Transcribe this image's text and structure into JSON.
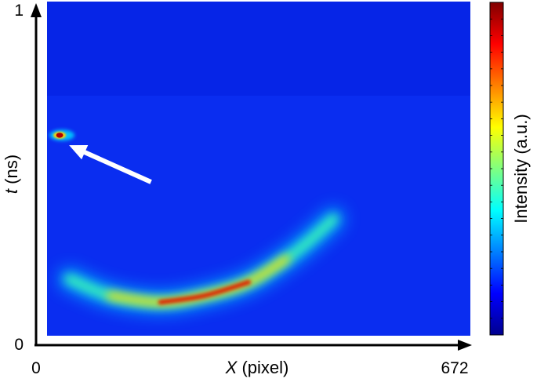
{
  "chart_data": {
    "type": "heatmap",
    "title": "",
    "xlabel": {
      "symbol": "X",
      "unit": " (pixel)"
    },
    "ylabel": {
      "symbol": "t",
      "unit": " (ns)"
    },
    "xlim": [
      0,
      672
    ],
    "ylim": [
      0,
      1
    ],
    "x_ticks": [
      "0",
      "672"
    ],
    "y_ticks": [
      "0",
      "1"
    ],
    "colorbar": {
      "label": "Intensity (a.u.)",
      "colormap": "jet",
      "colors": [
        "#00008f",
        "#0000ff",
        "#0080ff",
        "#00ffff",
        "#80ff80",
        "#ffff00",
        "#ff8000",
        "#ff0000",
        "#800000"
      ]
    },
    "background_color": "#0a2df0",
    "features": {
      "streak_curve": {
        "points": [
          [
            35,
            0.17
          ],
          [
            100,
            0.12
          ],
          [
            180,
            0.1
          ],
          [
            250,
            0.12
          ],
          [
            320,
            0.16
          ],
          [
            380,
            0.23
          ],
          [
            420,
            0.29
          ],
          [
            455,
            0.35
          ]
        ],
        "peak_x_range": [
          200,
          320
        ]
      },
      "hot_spot": {
        "x": 20,
        "y": 0.6
      }
    },
    "annotation": {
      "type": "arrow",
      "color": "#ffffff",
      "from": [
        165,
        0.46
      ],
      "to": [
        35,
        0.57
      ]
    }
  }
}
